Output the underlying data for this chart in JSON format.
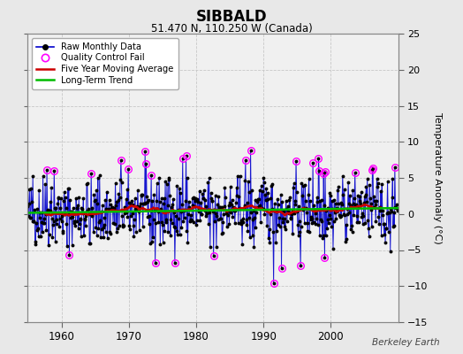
{
  "title": "SIBBALD",
  "subtitle": "51.470 N, 110.250 W (Canada)",
  "ylabel": "Temperature Anomaly (°C)",
  "watermark": "Berkeley Earth",
  "ylim": [
    -15,
    25
  ],
  "yticks": [
    -15,
    -10,
    -5,
    0,
    5,
    10,
    15,
    20,
    25
  ],
  "xlim": [
    1955,
    2010
  ],
  "fig_bg_color": "#e8e8e8",
  "plot_bg_color": "#f0f0f0",
  "raw_line_color": "#0000cc",
  "raw_marker_color": "#000000",
  "qc_fail_color": "#ff00ff",
  "moving_avg_color": "#cc0000",
  "trend_color": "#00bb00",
  "grid_color": "#c8c8c8",
  "seed": 42,
  "start_year": 1955.0,
  "end_year": 2009.917,
  "n_months": 660
}
